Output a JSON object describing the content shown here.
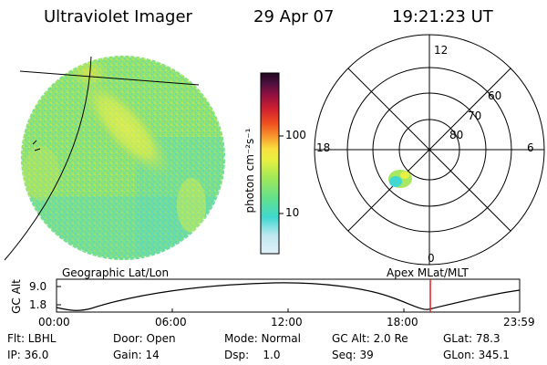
{
  "header": {
    "title": "Ultraviolet Imager",
    "date": "29 Apr 07",
    "time": "19:21:23 UT"
  },
  "colorbar": {
    "unit_label": "photon cm⁻²s⁻¹",
    "ticks": [
      "100",
      "10"
    ]
  },
  "polar": {
    "mlt_labels": {
      "top": "12",
      "left": "18",
      "right": "6",
      "bottom": "0"
    },
    "lat_labels": [
      "60",
      "70",
      "80"
    ]
  },
  "orbit": {
    "left_title": "Geographic Lat/Lon",
    "right_title": "Apex MLat/MLT",
    "y_axis_label": "GC Alt",
    "y_ticks": [
      "9.0",
      "1.8"
    ],
    "x_ticks": [
      "00:00",
      "06:00",
      "12:00",
      "18:00",
      "23:59"
    ],
    "marker_time": "19:21",
    "marker_color": "#e02020"
  },
  "info": {
    "row1": [
      "Flt: LBHL",
      "Door: Open",
      "Mode: Normal",
      "GC Alt: 2.0 Re",
      "GLat:  78.3"
    ],
    "row2": [
      "IP: 36.0",
      "Gain: 14",
      "Dsp:    1.0",
      "Seq: 39",
      "GLon: 345.1"
    ]
  },
  "colors": {
    "aurora_bright": "#f0f040",
    "aurora_mid": "#a8e860",
    "aurora_low": "#40d8d0"
  }
}
